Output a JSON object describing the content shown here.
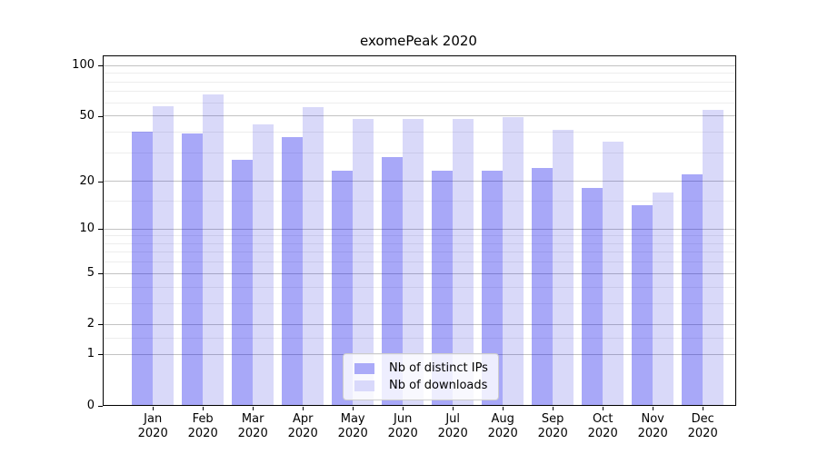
{
  "title": "exomePeak 2020",
  "chart_data": {
    "type": "bar",
    "title": "exomePeak 2020",
    "categories": [
      "Jan",
      "Feb",
      "Mar",
      "Apr",
      "May",
      "Jun",
      "Jul",
      "Aug",
      "Sep",
      "Oct",
      "Nov",
      "Dec"
    ],
    "x_year_label": "2020",
    "series": [
      {
        "name": "Nb of distinct IPs",
        "color": "#aaaaf8",
        "fill": "rgba(0,0,235,0.34)",
        "values": [
          40,
          39,
          27,
          37,
          23,
          28,
          23,
          23,
          24,
          18,
          14,
          22
        ]
      },
      {
        "name": "Nb of downloads",
        "color": "#d9d9fb",
        "fill": "rgba(0,0,215,0.15)",
        "values": [
          57,
          67,
          44,
          56,
          48,
          48,
          48,
          49,
          41,
          35,
          17,
          54
        ]
      }
    ],
    "y_axis": {
      "scale": "log1p",
      "ticks": [
        0,
        1,
        2,
        5,
        10,
        20,
        50,
        100
      ],
      "minor_gridlines": [
        1.5,
        3,
        4,
        6,
        7,
        8,
        9,
        15,
        30,
        40,
        60,
        70,
        80,
        90
      ],
      "max": 113
    },
    "xlabel": "",
    "ylabel": "",
    "grid": true,
    "legend_position": "lower center"
  }
}
